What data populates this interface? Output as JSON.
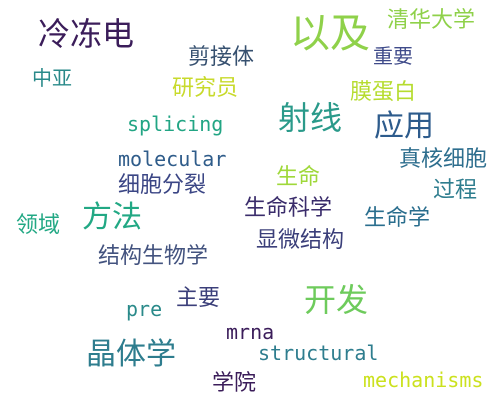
{
  "words": [
    {
      "text": "冷冻电",
      "color": "#3b1d5a"
    },
    {
      "text": "以及",
      "color": "#8fd14a"
    },
    {
      "text": "清华大学",
      "color": "#8fd14a"
    },
    {
      "text": "剪接体",
      "color": "#36506f"
    },
    {
      "text": "重要",
      "color": "#3f4b8a"
    },
    {
      "text": "中亚",
      "color": "#2a8a8a"
    },
    {
      "text": "研究员",
      "color": "#c8da2c"
    },
    {
      "text": "膜蛋白",
      "color": "#b6dc2f"
    },
    {
      "text": "射线",
      "color": "#2a9a8a"
    },
    {
      "text": "应用",
      "color": "#2d5b8c"
    },
    {
      "text": "splicing",
      "color": "#22a584"
    },
    {
      "text": "molecular",
      "color": "#2f5c8a"
    },
    {
      "text": "真核细胞",
      "color": "#2d6e8e"
    },
    {
      "text": "生命",
      "color": "#9fd83a"
    },
    {
      "text": "过程",
      "color": "#2e7d8e"
    },
    {
      "text": "细胞分裂",
      "color": "#3b4685"
    },
    {
      "text": "方法",
      "color": "#22a884"
    },
    {
      "text": "生命科学",
      "color": "#3a2c6b"
    },
    {
      "text": "生命学",
      "color": "#2a6e8e"
    },
    {
      "text": "领域",
      "color": "#22a884"
    },
    {
      "text": "显微结构",
      "color": "#3b3f7a"
    },
    {
      "text": "结构生物学",
      "color": "#43537f"
    },
    {
      "text": "开发",
      "color": "#6ecb5c"
    },
    {
      "text": "主要",
      "color": "#3b3f7a"
    },
    {
      "text": "pre",
      "color": "#2a8a8a"
    },
    {
      "text": "mrna",
      "color": "#3b1d5a"
    },
    {
      "text": "晶体学",
      "color": "#2e7d8e"
    },
    {
      "text": "structural",
      "color": "#2e7d8e"
    },
    {
      "text": "学院",
      "color": "#3b1d5a"
    },
    {
      "text": "mechanisms",
      "color": "#cbe11e"
    }
  ]
}
